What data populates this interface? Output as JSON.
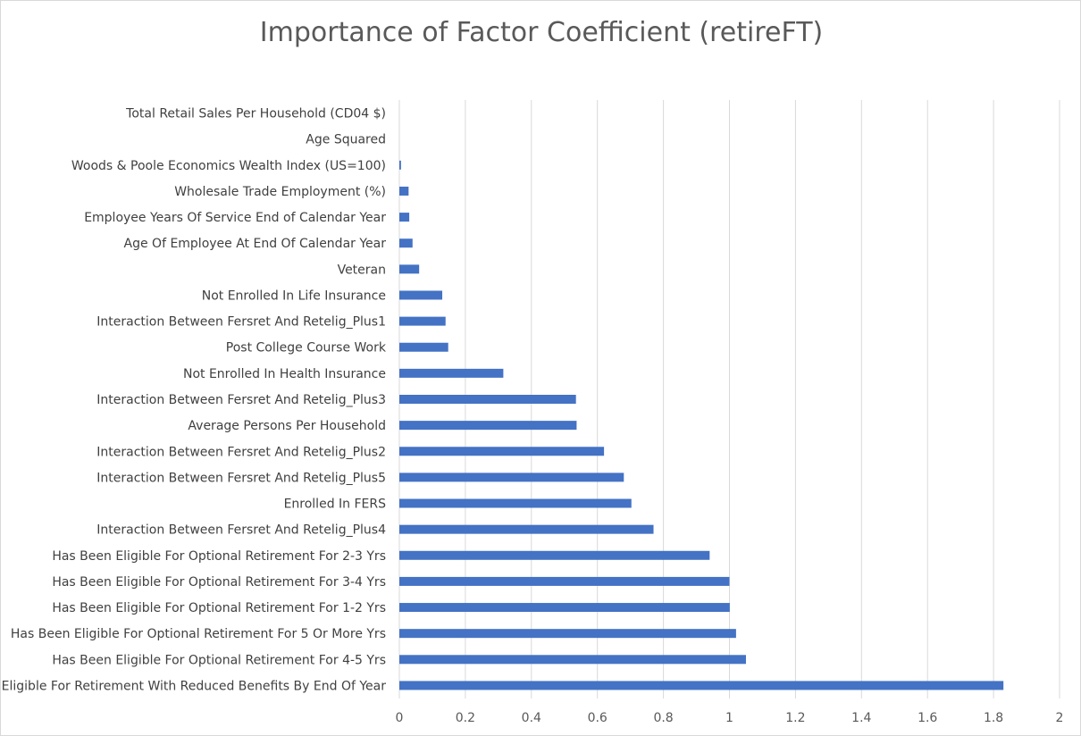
{
  "chart_data": {
    "type": "bar",
    "orientation": "horizontal",
    "title": "Importance of Factor Coefficient (retireFT)",
    "xlabel": "",
    "ylabel": "",
    "xlim": [
      0,
      2
    ],
    "x_ticks": [
      "0",
      "0.2",
      "0.4",
      "0.6",
      "0.8",
      "1",
      "1.2",
      "1.4",
      "1.6",
      "1.8",
      "2"
    ],
    "grid": "vertical",
    "legend": "none",
    "bar_color": "#4472C4",
    "gridline_color": "#d9d9d9",
    "categories": [
      "Total Retail Sales Per Household (CD04 $)",
      "Age Squared",
      "Woods & Poole Economics Wealth Index (US=100)",
      "Wholesale Trade Employment (%)",
      "Employee Years Of Service  End of Calendar Year",
      "Age Of Employee At End Of Calendar Year",
      "Veteran",
      "Not Enrolled In Life Insurance",
      "Interaction Between Fersret And Retelig_Plus1",
      "Post College Course Work",
      "Not Enrolled In Health Insurance",
      "Interaction Between Fersret And Retelig_Plus3",
      "Average Persons Per Household",
      "Interaction Between Fersret And Retelig_Plus2",
      "Interaction Between Fersret And Retelig_Plus5",
      "Enrolled In FERS",
      "Interaction Between Fersret And Retelig_Plus4",
      "Has Been Eligible For Optional Retirement For 2-3 Yrs",
      "Has Been Eligible For Optional Retirement For 3-4 Yrs",
      "Has Been Eligible For Optional Retirement For 1-2 Yrs",
      "Has Been Eligible For Optional Retirement For 5 Or More Yrs",
      "Has Been Eligible For Optional Retirement For 4-5 Yrs",
      "Eligible For Retirement With Reduced Benefits By End Of Year"
    ],
    "values": [
      0.0,
      0.0,
      0.005,
      0.028,
      0.03,
      0.04,
      0.06,
      0.13,
      0.14,
      0.148,
      0.315,
      0.535,
      0.537,
      0.62,
      0.68,
      0.703,
      0.77,
      0.94,
      1.0,
      1.001,
      1.02,
      1.05,
      1.83
    ]
  }
}
